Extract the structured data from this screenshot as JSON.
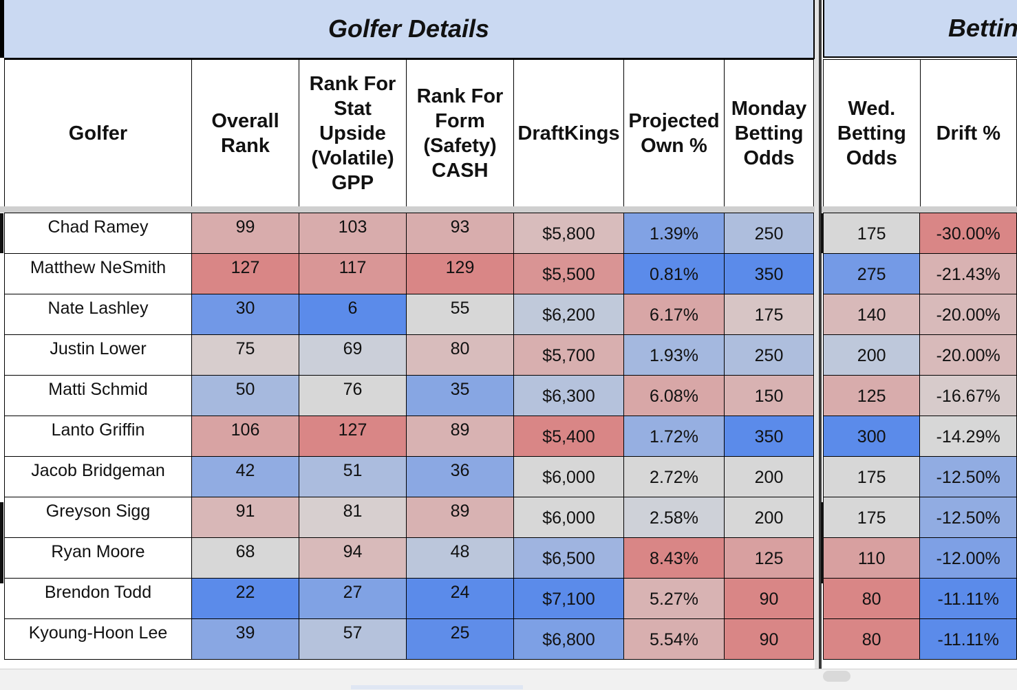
{
  "groups": {
    "left": "Golfer Details",
    "right": "Betting"
  },
  "headers": {
    "golfer": "Golfer",
    "overall_rank": "Overall Rank",
    "rank_stat": "Rank For Stat Upside (Volatile) GPP",
    "rank_form": "Rank For Form (Safety) CASH",
    "draftkings": "DraftKings",
    "projected_own": "Projected Own %",
    "monday_odds": "Monday Betting Odds",
    "wed_odds": "Wed. Betting Odds",
    "drift": "Drift %"
  },
  "rows": [
    {
      "golfer": "Chad Ramey",
      "overall_rank": "99",
      "rank_stat": "103",
      "rank_form": "93",
      "draftkings": "$5,800",
      "projected_own": "1.39%",
      "monday_odds": "250",
      "wed_odds": "175",
      "drift": "-30.00%"
    },
    {
      "golfer": "Matthew NeSmith",
      "overall_rank": "127",
      "rank_stat": "117",
      "rank_form": "129",
      "draftkings": "$5,500",
      "projected_own": "0.81%",
      "monday_odds": "350",
      "wed_odds": "275",
      "drift": "-21.43%"
    },
    {
      "golfer": "Nate Lashley",
      "overall_rank": "30",
      "rank_stat": "6",
      "rank_form": "55",
      "draftkings": "$6,200",
      "projected_own": "6.17%",
      "monday_odds": "175",
      "wed_odds": "140",
      "drift": "-20.00%"
    },
    {
      "golfer": "Justin Lower",
      "overall_rank": "75",
      "rank_stat": "69",
      "rank_form": "80",
      "draftkings": "$5,700",
      "projected_own": "1.93%",
      "monday_odds": "250",
      "wed_odds": "200",
      "drift": "-20.00%"
    },
    {
      "golfer": "Matti Schmid",
      "overall_rank": "50",
      "rank_stat": "76",
      "rank_form": "35",
      "draftkings": "$6,300",
      "projected_own": "6.08%",
      "monday_odds": "150",
      "wed_odds": "125",
      "drift": "-16.67%"
    },
    {
      "golfer": "Lanto Griffin",
      "overall_rank": "106",
      "rank_stat": "127",
      "rank_form": "89",
      "draftkings": "$5,400",
      "projected_own": "1.72%",
      "monday_odds": "350",
      "wed_odds": "300",
      "drift": "-14.29%"
    },
    {
      "golfer": "Jacob Bridgeman",
      "overall_rank": "42",
      "rank_stat": "51",
      "rank_form": "36",
      "draftkings": "$6,000",
      "projected_own": "2.72%",
      "monday_odds": "200",
      "wed_odds": "175",
      "drift": "-12.50%"
    },
    {
      "golfer": "Greyson Sigg",
      "overall_rank": "91",
      "rank_stat": "81",
      "rank_form": "89",
      "draftkings": "$6,000",
      "projected_own": "2.58%",
      "monday_odds": "200",
      "wed_odds": "175",
      "drift": "-12.50%"
    },
    {
      "golfer": "Ryan Moore",
      "overall_rank": "68",
      "rank_stat": "94",
      "rank_form": "48",
      "draftkings": "$6,500",
      "projected_own": "8.43%",
      "monday_odds": "125",
      "wed_odds": "110",
      "drift": "-12.00%"
    },
    {
      "golfer": "Brendon Todd",
      "overall_rank": "22",
      "rank_stat": "27",
      "rank_form": "24",
      "draftkings": "$7,100",
      "projected_own": "5.27%",
      "monday_odds": "90",
      "wed_odds": "80",
      "drift": "-11.11%"
    },
    {
      "golfer": "Kyoung-Hoon Lee",
      "overall_rank": "39",
      "rank_stat": "57",
      "rank_form": "25",
      "draftkings": "$6,800",
      "projected_own": "5.54%",
      "monday_odds": "90",
      "wed_odds": "80",
      "drift": "-11.11%"
    }
  ],
  "colors": {
    "group_header_bg": "#cad9f2",
    "scale_low": "#5b8bea",
    "scale_mid": "#d7d7d7",
    "scale_high": "#d98686"
  }
}
